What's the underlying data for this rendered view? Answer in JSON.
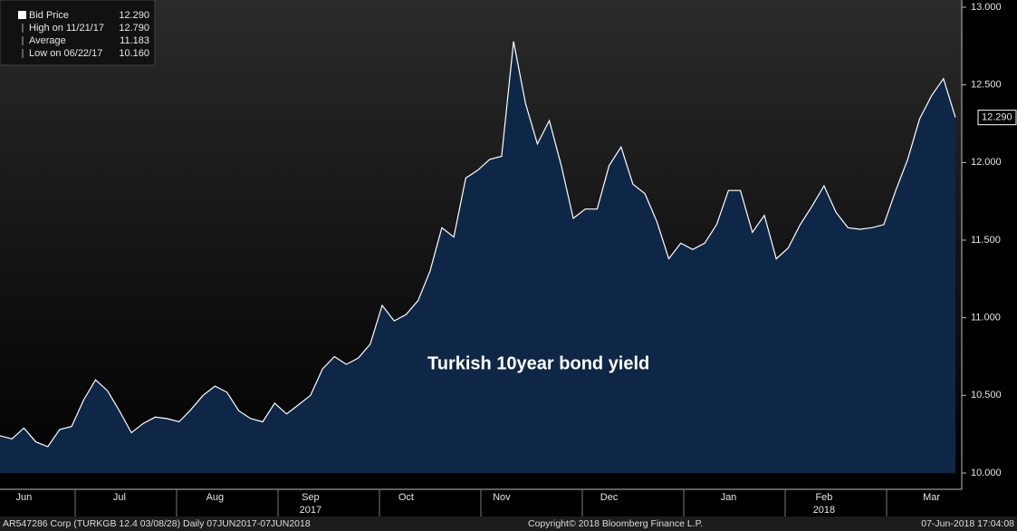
{
  "chart_data": {
    "type": "area",
    "title": "Turkish 10year bond yield",
    "categories": [
      null,
      null,
      "Jun",
      null,
      null,
      null,
      null,
      null,
      null,
      null,
      "Jul",
      null,
      null,
      null,
      null,
      null,
      null,
      null,
      "Aug",
      null,
      null,
      null,
      null,
      null,
      null,
      null,
      "Sep",
      null,
      null,
      null,
      null,
      null,
      null,
      null,
      "Oct",
      null,
      null,
      null,
      null,
      null,
      null,
      null,
      "Nov",
      null,
      null,
      null,
      null,
      null,
      null,
      null,
      null,
      "Dec",
      null,
      null,
      null,
      null,
      null,
      null,
      null,
      null,
      null,
      "Jan",
      null,
      null,
      null,
      null,
      null,
      null,
      null,
      "Feb",
      null,
      null,
      null,
      null,
      null,
      null,
      null,
      null,
      "Mar",
      null,
      null
    ],
    "year_labels": [
      null,
      null,
      null,
      null,
      null,
      null,
      null,
      null,
      null,
      null,
      null,
      null,
      null,
      null,
      null,
      null,
      null,
      null,
      null,
      null,
      null,
      null,
      null,
      null,
      null,
      null,
      "2017",
      null,
      null,
      null,
      null,
      null,
      null,
      null,
      null,
      null,
      null,
      null,
      null,
      null,
      null,
      null,
      null,
      null,
      null,
      null,
      null,
      null,
      null,
      null,
      null,
      null,
      null,
      null,
      null,
      null,
      null,
      null,
      null,
      null,
      null,
      null,
      null,
      null,
      null,
      null,
      null,
      null,
      null,
      "2018",
      null,
      null,
      null,
      null,
      null,
      null,
      null,
      null,
      null,
      null,
      null
    ],
    "series": [
      {
        "name": "Bid Price",
        "color": "#ffffff",
        "fill": "#0f2746",
        "values": [
          10.24,
          10.22,
          10.29,
          10.2,
          10.17,
          10.28,
          10.3,
          10.47,
          10.6,
          10.53,
          10.4,
          10.26,
          10.32,
          10.36,
          10.35,
          10.33,
          10.41,
          10.5,
          10.56,
          10.52,
          10.4,
          10.35,
          10.33,
          10.45,
          10.38,
          10.44,
          10.5,
          10.67,
          10.75,
          10.7,
          10.74,
          10.83,
          11.08,
          10.98,
          11.02,
          11.11,
          11.3,
          11.58,
          11.52,
          11.9,
          11.95,
          12.02,
          12.04,
          12.78,
          12.38,
          12.12,
          12.27,
          11.98,
          11.64,
          11.7,
          11.7,
          11.98,
          12.1,
          11.86,
          11.8,
          11.62,
          11.38,
          11.48,
          11.44,
          11.48,
          11.6,
          11.82,
          11.82,
          11.55,
          11.66,
          11.38,
          11.45,
          11.6,
          11.72,
          11.85,
          11.68,
          11.58,
          11.57,
          11.58,
          11.6,
          11.82,
          12.02,
          12.28,
          12.43,
          12.54,
          12.29
        ],
        "last_label": "12.290"
      }
    ],
    "ylim": [
      10,
      13
    ],
    "yticks": [
      {
        "value": 10,
        "label": "10.000"
      },
      {
        "value": 10.5,
        "label": "10.500"
      },
      {
        "value": 11,
        "label": "11.000"
      },
      {
        "value": 11.5,
        "label": "11.500"
      },
      {
        "value": 12,
        "label": "12.000"
      },
      {
        "value": 12.5,
        "label": "12.500"
      },
      {
        "value": 13,
        "label": "13.000"
      }
    ],
    "legend": [
      [
        "Bid Price",
        "12.290"
      ],
      [
        "High on 11/21/17",
        "12.790"
      ],
      [
        "Average",
        "11.183"
      ],
      [
        "Low on 06/22/17",
        "10.160"
      ]
    ],
    "footer": [
      "AR547286 Corp (TURKGB 12.4 03/08/28)  Daily 07JUN2017-07JUN2018",
      "Copyright© 2018 Bloomberg Finance L.P.",
      "07-Jun-2018 17:04:08"
    ]
  }
}
